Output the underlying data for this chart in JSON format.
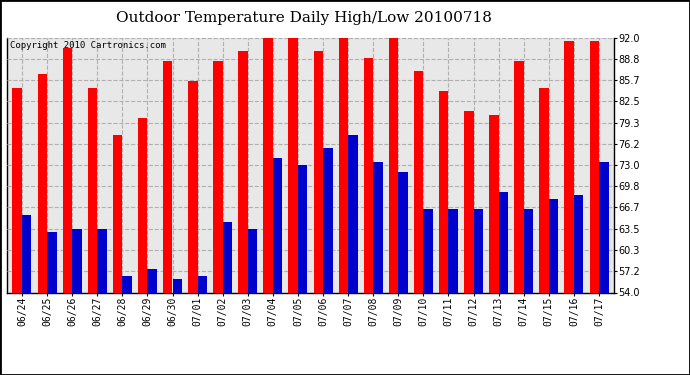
{
  "title": "Outdoor Temperature Daily High/Low 20100718",
  "copyright": "Copyright 2010 Cartronics.com",
  "dates": [
    "06/24",
    "06/25",
    "06/26",
    "06/27",
    "06/28",
    "06/29",
    "06/30",
    "07/01",
    "07/02",
    "07/03",
    "07/04",
    "07/05",
    "07/06",
    "07/07",
    "07/08",
    "07/09",
    "07/10",
    "07/11",
    "07/12",
    "07/13",
    "07/14",
    "07/15",
    "07/16",
    "07/17"
  ],
  "highs": [
    84.5,
    86.5,
    90.5,
    84.5,
    77.5,
    80.0,
    88.5,
    85.5,
    88.5,
    90.0,
    92.0,
    93.0,
    90.0,
    93.0,
    89.0,
    92.0,
    87.0,
    84.0,
    81.0,
    80.5,
    88.5,
    84.5,
    91.5,
    91.5
  ],
  "lows": [
    65.5,
    63.0,
    63.5,
    63.5,
    56.5,
    57.5,
    56.0,
    56.5,
    64.5,
    63.5,
    74.0,
    73.0,
    75.5,
    77.5,
    73.5,
    72.0,
    66.5,
    66.5,
    66.5,
    69.0,
    66.5,
    68.0,
    68.5,
    73.5
  ],
  "high_color": "#ff0000",
  "low_color": "#0000cc",
  "bg_color": "#ffffff",
  "plot_bg_color": "#e8e8e8",
  "grid_color": "#b0b0b0",
  "ymin": 54.0,
  "ymax": 92.0,
  "yticks": [
    54.0,
    57.2,
    60.3,
    63.5,
    66.7,
    69.8,
    73.0,
    76.2,
    79.3,
    82.5,
    85.7,
    88.8,
    92.0
  ],
  "ytick_labels": [
    "54.0",
    "57.2",
    "60.3",
    "63.5",
    "66.7",
    "69.8",
    "73.0",
    "76.2",
    "79.3",
    "82.5",
    "85.7",
    "88.8",
    "92.0"
  ],
  "title_fontsize": 11,
  "copyright_fontsize": 6.5,
  "tick_fontsize": 7,
  "bar_width": 0.38
}
